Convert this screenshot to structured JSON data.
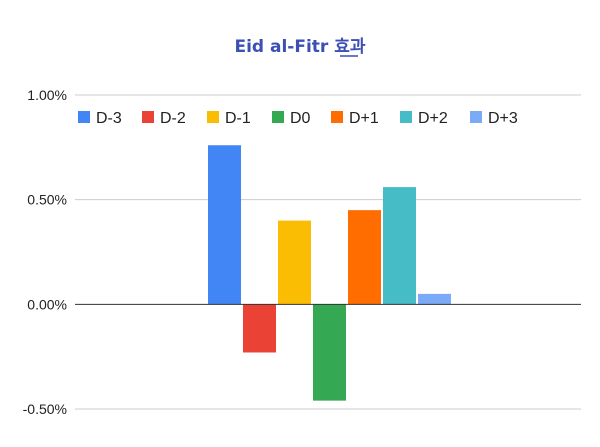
{
  "chart_data": {
    "type": "bar",
    "title": "Eid al-Fitr 효과",
    "title_color": "#3c4fb5",
    "xlabel": "",
    "ylabel": "",
    "categories": [
      ""
    ],
    "series": [
      {
        "name": "D-3",
        "values": [
          0.76
        ],
        "color": "#4285f4"
      },
      {
        "name": "D-2",
        "values": [
          -0.23
        ],
        "color": "#ea4335"
      },
      {
        "name": "D-1",
        "values": [
          0.4
        ],
        "color": "#fbbc04"
      },
      {
        "name": "D0",
        "values": [
          -0.46
        ],
        "color": "#34a853"
      },
      {
        "name": "D+1",
        "values": [
          0.45
        ],
        "color": "#ff6d01"
      },
      {
        "name": "D+2",
        "values": [
          0.56
        ],
        "color": "#46bdc6"
      },
      {
        "name": "D+3",
        "values": [
          0.05
        ],
        "color": "#7baaf7"
      }
    ],
    "ylim": [
      -0.5,
      1.0
    ],
    "yticks": [
      1.0,
      0.5,
      0.0,
      -0.5
    ],
    "ytick_labels": [
      "1.00%",
      "0.50%",
      "0.00%",
      "-0.50%"
    ],
    "grid": true,
    "legend_position": "top"
  }
}
